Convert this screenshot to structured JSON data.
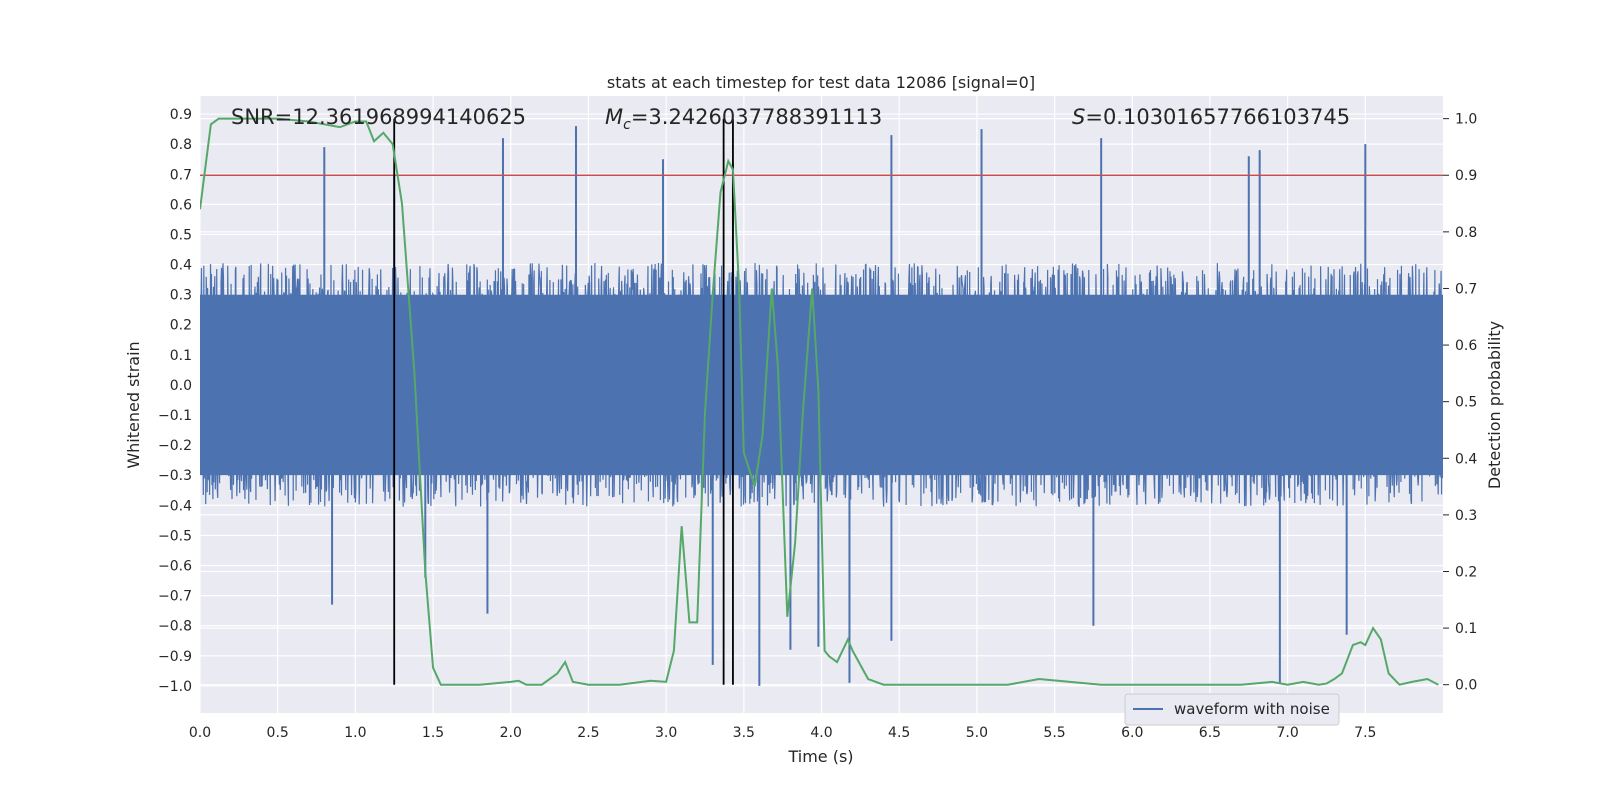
{
  "chart_data": {
    "type": "line",
    "title": "stats at each timestep for test data 12086 [signal=0]",
    "xlabel": "Time (s)",
    "ylabel": "Whitened strain",
    "y2label": "Detection probability",
    "xlim": [
      0.0,
      8.0
    ],
    "ylim": [
      -1.09,
      0.96
    ],
    "y2lim": [
      -0.05,
      1.04
    ],
    "xticks": [
      "0.0",
      "0.5",
      "1.0",
      "1.5",
      "2.0",
      "2.5",
      "3.0",
      "3.5",
      "4.0",
      "4.5",
      "5.0",
      "5.5",
      "6.0",
      "6.5",
      "7.0",
      "7.5"
    ],
    "yticks": [
      "0.9",
      "0.8",
      "0.7",
      "0.6",
      "0.5",
      "0.4",
      "0.3",
      "0.2",
      "0.1",
      "0.0",
      "−0.1",
      "−0.2",
      "−0.3",
      "−0.4",
      "−0.5",
      "−0.6",
      "−0.7",
      "−0.8",
      "−0.9",
      "−1.0"
    ],
    "y2ticks": [
      "1.0",
      "0.9",
      "0.8",
      "0.7",
      "0.6",
      "0.5",
      "0.4",
      "0.3",
      "0.2",
      "0.1",
      "0.0"
    ],
    "annotations": {
      "snr": "SNR=12.361968994140625",
      "mc_symbol": "M",
      "mc_subscript": "c",
      "mc_value": "=3.2426037788391113",
      "s_symbol": "S",
      "s_value": "=0.10301657766103745"
    },
    "threshold": {
      "value": 0.9,
      "axis": "right",
      "color": "#c44e52"
    },
    "vertical_lines": {
      "x": [
        1.25,
        3.37,
        3.43
      ],
      "color": "#000000"
    },
    "waveform": {
      "name": "waveform with noise",
      "color": "#4c72b0",
      "typical_envelope": [
        -0.3,
        0.3
      ],
      "peaks": [
        {
          "x": 0.8,
          "y": 0.79
        },
        {
          "x": 1.25,
          "y": 0.7
        },
        {
          "x": 1.95,
          "y": 0.82
        },
        {
          "x": 2.42,
          "y": 0.86
        },
        {
          "x": 2.98,
          "y": 0.75
        },
        {
          "x": 3.43,
          "y": 0.74
        },
        {
          "x": 4.45,
          "y": 0.83
        },
        {
          "x": 5.03,
          "y": 0.85
        },
        {
          "x": 5.8,
          "y": 0.82
        },
        {
          "x": 6.75,
          "y": 0.76
        },
        {
          "x": 6.82,
          "y": 0.78
        },
        {
          "x": 7.5,
          "y": 0.8
        }
      ],
      "troughs": [
        {
          "x": 0.85,
          "y": -0.73
        },
        {
          "x": 1.45,
          "y": -0.64
        },
        {
          "x": 1.85,
          "y": -0.76
        },
        {
          "x": 3.3,
          "y": -0.93
        },
        {
          "x": 3.6,
          "y": -1.0
        },
        {
          "x": 3.8,
          "y": -0.88
        },
        {
          "x": 3.98,
          "y": -0.87
        },
        {
          "x": 4.18,
          "y": -0.99
        },
        {
          "x": 4.45,
          "y": -0.85
        },
        {
          "x": 5.75,
          "y": -0.8
        },
        {
          "x": 6.95,
          "y": -0.99
        },
        {
          "x": 7.38,
          "y": -0.83
        }
      ]
    },
    "detection_probability": {
      "color": "#55a868",
      "x": [
        0.0,
        0.07,
        0.12,
        0.3,
        0.5,
        0.7,
        0.8,
        0.9,
        1.0,
        1.07,
        1.12,
        1.18,
        1.24,
        1.3,
        1.38,
        1.45,
        1.5,
        1.55,
        1.6,
        1.8,
        2.0,
        2.05,
        2.1,
        2.2,
        2.3,
        2.35,
        2.4,
        2.5,
        2.7,
        2.9,
        3.0,
        3.05,
        3.1,
        3.15,
        3.2,
        3.25,
        3.3,
        3.35,
        3.4,
        3.43,
        3.47,
        3.5,
        3.57,
        3.62,
        3.68,
        3.72,
        3.78,
        3.83,
        3.88,
        3.94,
        3.98,
        4.02,
        4.05,
        4.1,
        4.17,
        4.2,
        4.3,
        4.4,
        4.6,
        5.0,
        5.2,
        5.4,
        5.6,
        5.8,
        6.0,
        6.4,
        6.7,
        6.9,
        7.0,
        7.1,
        7.2,
        7.25,
        7.3,
        7.35,
        7.42,
        7.47,
        7.5,
        7.55,
        7.6,
        7.65,
        7.72,
        7.8,
        7.9,
        7.97
      ],
      "y": [
        0.84,
        0.99,
        1.0,
        1.0,
        1.0,
        0.995,
        0.99,
        0.985,
        0.995,
        0.995,
        0.96,
        0.975,
        0.955,
        0.85,
        0.55,
        0.2,
        0.03,
        0.0,
        0.0,
        0.0,
        0.005,
        0.007,
        0.0,
        0.0,
        0.02,
        0.04,
        0.005,
        0.0,
        0.0,
        0.007,
        0.005,
        0.06,
        0.28,
        0.11,
        0.11,
        0.48,
        0.69,
        0.87,
        0.925,
        0.91,
        0.7,
        0.41,
        0.35,
        0.44,
        0.7,
        0.56,
        0.12,
        0.25,
        0.48,
        0.7,
        0.52,
        0.06,
        0.05,
        0.04,
        0.08,
        0.06,
        0.01,
        0.0,
        0.0,
        0.0,
        0.0,
        0.01,
        0.005,
        0.0,
        0.0,
        0.0,
        0.0,
        0.005,
        0.0,
        0.005,
        0.0,
        0.002,
        0.01,
        0.02,
        0.07,
        0.075,
        0.07,
        0.1,
        0.08,
        0.02,
        0.0,
        0.005,
        0.01,
        0.0
      ]
    },
    "legend": {
      "entries": [
        "waveform with noise"
      ],
      "placement": "lower-right"
    },
    "grid": true
  }
}
